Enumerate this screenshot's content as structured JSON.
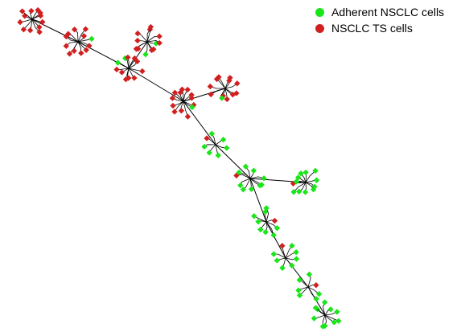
{
  "legend": {
    "items": [
      {
        "label": "Adherent NSCLC cells",
        "color": "#19e619",
        "group": "adherent"
      },
      {
        "label": "NSCLC TS cells",
        "color": "#d11f1f",
        "group": "ts"
      }
    ]
  },
  "colors": {
    "adherent": "#19e619",
    "ts": "#d11f1f",
    "edge": "#000000"
  },
  "tree": {
    "description_type": "minimum-spanning-tree of cell clusters",
    "clusters": [
      {
        "id": "c1",
        "hub": [
          40,
          24
        ],
        "leaves": 12,
        "green": 0
      },
      {
        "id": "c2",
        "hub": [
          97,
          52
        ],
        "leaves": 12,
        "green": 1
      },
      {
        "id": "c3",
        "hub": [
          183,
          52
        ],
        "leaves": 12,
        "green": 2
      },
      {
        "id": "c4",
        "hub": [
          160,
          85
        ],
        "leaves": 11,
        "green": 2
      },
      {
        "id": "c5",
        "hub": [
          228,
          126
        ],
        "leaves": 13,
        "green": 1
      },
      {
        "id": "c6",
        "hub": [
          280,
          110
        ],
        "leaves": 12,
        "green": 1
      },
      {
        "id": "c7",
        "hub": [
          268,
          180
        ],
        "leaves": 7,
        "green": 6
      },
      {
        "id": "c8",
        "hub": [
          311,
          222
        ],
        "leaves": 10,
        "green": 9
      },
      {
        "id": "c9",
        "hub": [
          380,
          227
        ],
        "leaves": 12,
        "green": 11
      },
      {
        "id": "c10",
        "hub": [
          331,
          276
        ],
        "leaves": 9,
        "green": 8
      },
      {
        "id": "c11",
        "hub": [
          355,
          321
        ],
        "leaves": 8,
        "green": 7
      },
      {
        "id": "c12",
        "hub": [
          383,
          357
        ],
        "leaves": 7,
        "green": 6
      },
      {
        "id": "c13",
        "hub": [
          404,
          392
        ],
        "leaves": 10,
        "green": 10
      }
    ],
    "edges": [
      [
        "c1",
        "c2"
      ],
      [
        "c2",
        "c4"
      ],
      [
        "c3",
        "c4"
      ],
      [
        "c4",
        "c5"
      ],
      [
        "c5",
        "c6"
      ],
      [
        "c5",
        "c7"
      ],
      [
        "c7",
        "c8"
      ],
      [
        "c8",
        "c9"
      ],
      [
        "c8",
        "c10"
      ],
      [
        "c10",
        "c11"
      ],
      [
        "c11",
        "c12"
      ],
      [
        "c12",
        "c13"
      ]
    ]
  }
}
